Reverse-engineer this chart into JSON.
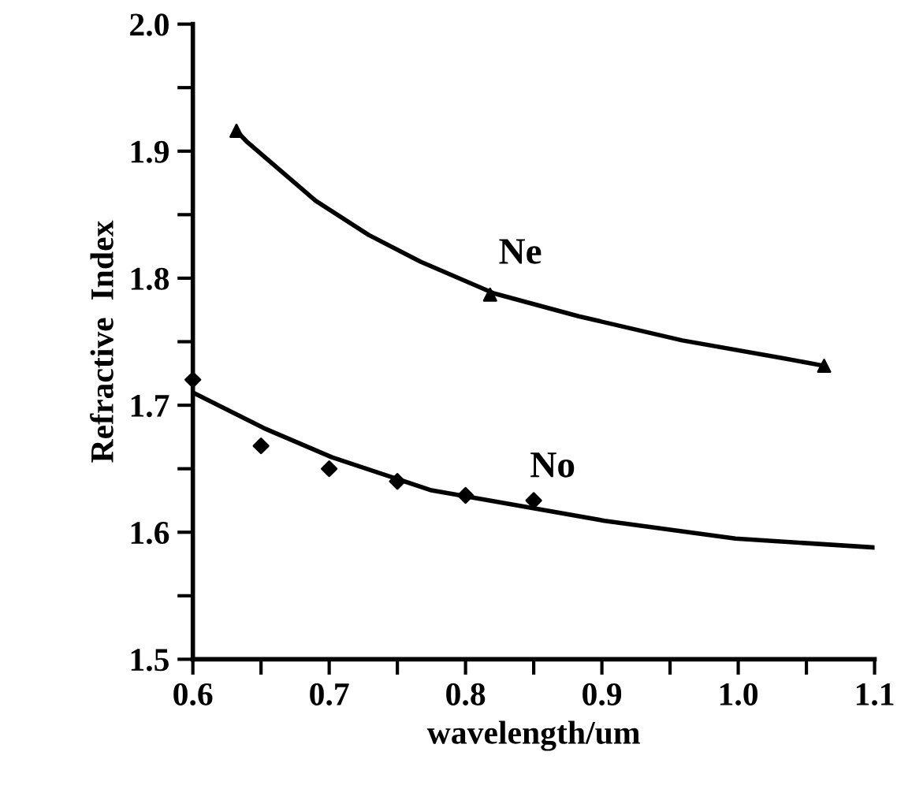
{
  "chart_data": {
    "type": "scatter",
    "xlabel": "wavelength/um",
    "ylabel": "Refractive  Index",
    "series": [
      {
        "marker": "triangle",
        "color": "#000000",
        "x": [
          0.632,
          0.818,
          1.063
        ],
        "values": [
          1.916,
          1.787,
          1.731
        ]
      },
      {
        "type": "line",
        "name": "Ne",
        "marker": "none",
        "color": "#000000",
        "x": [
          0.632,
          0.64,
          0.69,
          0.729,
          0.767,
          0.821,
          0.883,
          0.959,
          1.033,
          1.063
        ],
        "values": [
          1.916,
          1.907,
          1.861,
          1.834,
          1.813,
          1.788,
          1.77,
          1.751,
          1.737,
          1.731
        ]
      },
      {
        "marker": "diamond",
        "color": "#000000",
        "x": [
          0.6,
          0.65,
          0.7,
          0.75,
          0.8,
          0.85
        ],
        "values": [
          1.72,
          1.668,
          1.65,
          1.64,
          1.629,
          1.625
        ]
      },
      {
        "type": "line",
        "name": "No",
        "marker": "none",
        "color": "#000000",
        "x": [
          0.6,
          0.652,
          0.702,
          0.775,
          0.844,
          0.902,
          0.998,
          1.1
        ],
        "values": [
          1.71,
          1.682,
          1.659,
          1.633,
          1.62,
          1.609,
          1.595,
          1.588
        ]
      }
    ],
    "xlim": [
      0.6,
      1.1
    ],
    "ylim": [
      1.5,
      2.0
    ],
    "xticks": [
      0.6,
      {
        "value": 0.65,
        "label": null
      },
      0.7,
      {
        "value": 0.75,
        "label": null
      },
      0.8,
      {
        "value": 0.85,
        "label": null
      },
      0.9,
      {
        "value": 0.95,
        "label": null
      },
      "1.0",
      {
        "value": 1.05,
        "label": null
      },
      1.1
    ],
    "yticks": [
      1.5,
      {
        "value": 1.55,
        "label": null
      },
      1.6,
      {
        "value": 1.65,
        "label": null
      },
      1.7,
      {
        "value": 1.75,
        "label": null
      },
      1.8,
      {
        "value": 1.85,
        "label": null
      },
      1.9,
      {
        "value": 1.95,
        "label": null
      },
      "2.0"
    ],
    "grid": false,
    "legend": false
  }
}
